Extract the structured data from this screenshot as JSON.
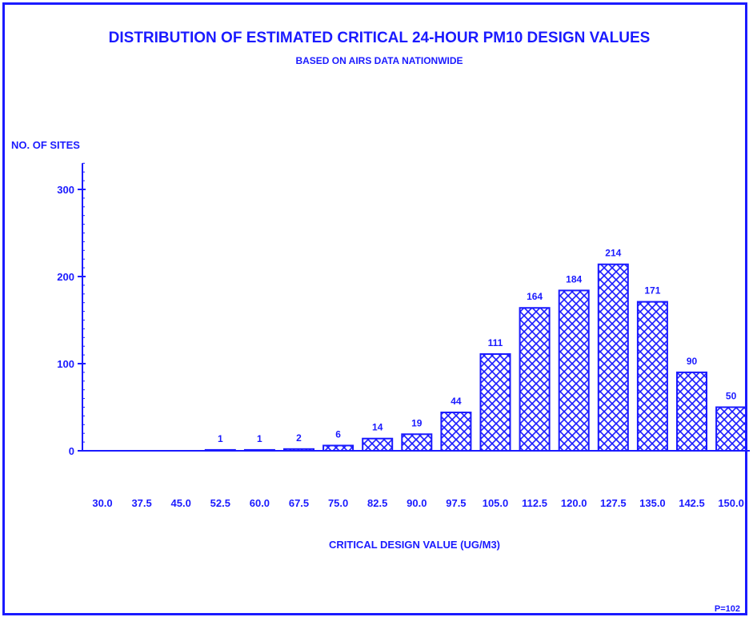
{
  "chart_data": {
    "type": "bar",
    "title": "DISTRIBUTION OF ESTIMATED CRITICAL 24-HOUR PM10 DESIGN VALUES",
    "subtitle": "BASED ON AIRS DATA NATIONWIDE",
    "ylabel": "NO. OF SITES",
    "xlabel": "CRITICAL DESIGN VALUE (UG/M3)",
    "ylim": [
      0,
      330
    ],
    "yticks": [
      "0",
      "100",
      "200",
      "300"
    ],
    "ytick_values": [
      0,
      100,
      200,
      300
    ],
    "categories": [
      "30.0",
      "37.5",
      "45.0",
      "52.5",
      "60.0",
      "67.5",
      "75.0",
      "82.5",
      "90.0",
      "97.5",
      "105.0",
      "112.5",
      "120.0",
      "127.5",
      "135.0",
      "142.5",
      "150.0"
    ],
    "values": [
      0,
      0,
      0,
      1,
      1,
      2,
      6,
      14,
      19,
      44,
      111,
      164,
      184,
      214,
      171,
      90,
      50
    ],
    "data_labels": [
      "",
      "",
      "",
      "1",
      "1",
      "2",
      "6",
      "14",
      "19",
      "44",
      "111",
      "164",
      "184",
      "214",
      "171",
      "90",
      "50"
    ],
    "bar_fill": "crosshatch",
    "color": "#1a1aff",
    "grid": false,
    "legend": "none"
  },
  "footer": {
    "code": "P=102"
  }
}
